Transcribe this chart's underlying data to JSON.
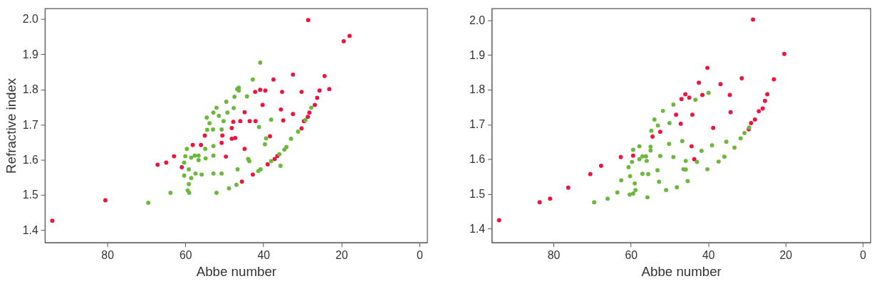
{
  "chart_data": [
    {
      "type": "scatter",
      "xlabel": "Abbe number",
      "ylabel": "Refractive index",
      "xlim": [
        96,
        -2
      ],
      "ylim": [
        1.365,
        2.03
      ],
      "xticks": [
        80,
        60,
        40,
        20,
        0
      ],
      "yticks": [
        1.4,
        1.5,
        1.6,
        1.7,
        1.8,
        1.9,
        {
          "value": 2.0,
          "label": "2.0"
        }
      ],
      "grid": false,
      "legend": false,
      "marker": "circle",
      "series": [
        {
          "color": "#f0143c",
          "x": [
            94.1,
            80.5,
            67.1,
            64.9,
            62.9,
            60.9,
            58.1,
            56.0,
            55.0,
            50.5,
            50.7,
            49.6,
            48.1,
            47.7,
            48.1,
            47.2,
            28.5,
            17.9,
            19.4,
            32.4,
            37.4,
            24.3,
            23.1,
            25.6,
            26.2,
            26.8,
            30.2,
            35.2,
            39.5,
            40.8,
            42.1,
            40.2,
            35.5,
            32.4,
            34.9,
            44.8,
            45.9,
            43.5,
            42.0,
            28.2,
            28.6,
            29.6,
            30.2,
            38.3,
            44.8,
            36.4,
            37.1,
            38.9,
            42.7,
            45.5
          ],
          "values": [
            1.427,
            1.485,
            1.586,
            1.592,
            1.61,
            1.579,
            1.642,
            1.642,
            1.669,
            1.669,
            1.648,
            1.609,
            1.69,
            1.708,
            1.66,
            1.662,
            1.997,
            1.952,
            1.937,
            1.842,
            1.828,
            1.838,
            1.801,
            1.797,
            1.776,
            1.756,
            1.793,
            1.793,
            1.797,
            1.799,
            1.793,
            1.756,
            1.743,
            1.73,
            1.712,
            1.735,
            1.71,
            1.71,
            1.71,
            1.734,
            1.722,
            1.71,
            1.689,
            1.667,
            1.631,
            1.611,
            1.602,
            1.587,
            1.558,
            1.538
          ]
        },
        {
          "color": "#6cb83a",
          "x": [
            69.5,
            63.8,
            59.0,
            59.4,
            59.1,
            58.5,
            60.3,
            59.1,
            60.3,
            60.0,
            59.6,
            58.5,
            57.6,
            56.6,
            56.6,
            54.9,
            54.8,
            57.4,
            55.8,
            52.8,
            50.7,
            52.8,
            52.8,
            52.0,
            48.8,
            46.9,
            46.6,
            54.4,
            52.9,
            50.7,
            54.5,
            53.8,
            52.0,
            51.4,
            50.2,
            49.2,
            49.5,
            47.4,
            47.6,
            46.7,
            52.8,
            40.8,
            42.7,
            46.3,
            46.3,
            44.2,
            38.0,
            41.1,
            39.3,
            39.6,
            27.7,
            29.2,
            31.1,
            32.9,
            34.1,
            34.6,
            35.9,
            38.0,
            35.6,
            40.7,
            41.3,
            43.9,
            43.6
          ],
          "values": [
            1.478,
            1.506,
            1.506,
            1.513,
            1.531,
            1.548,
            1.555,
            1.573,
            1.592,
            1.61,
            1.631,
            1.606,
            1.612,
            1.612,
            1.599,
            1.631,
            1.604,
            1.561,
            1.558,
            1.561,
            1.561,
            1.612,
            1.639,
            1.506,
            1.519,
            1.529,
            1.573,
            1.685,
            1.686,
            1.686,
            1.72,
            1.704,
            1.748,
            1.725,
            1.71,
            1.734,
            1.765,
            1.779,
            1.747,
            1.801,
            1.734,
            1.876,
            1.828,
            1.805,
            1.797,
            1.78,
            1.714,
            1.693,
            1.661,
            1.644,
            1.748,
            1.713,
            1.68,
            1.66,
            1.636,
            1.629,
            1.616,
            1.596,
            1.583,
            1.573,
            1.568,
            1.602,
            1.596
          ]
        }
      ]
    },
    {
      "type": "scatter",
      "xlabel": "Abbe number",
      "xlim": [
        96,
        -2
      ],
      "ylim": [
        1.36,
        2.034
      ],
      "xticks": [
        80,
        60,
        40,
        20,
        0
      ],
      "yticks": [
        1.4,
        1.5,
        1.6,
        1.7,
        1.8,
        1.9,
        {
          "value": 2.0,
          "label": "2.0"
        }
      ],
      "grid": false,
      "legend": false,
      "marker": "circle",
      "series": [
        {
          "color": "#f0143c",
          "x": [
            94.1,
            83.6,
            80.9,
            76.2,
            70.5,
            67.7,
            62.6,
            59.4,
            54.4,
            52.4,
            48.3,
            47.1,
            46.9,
            28.4,
            20.3,
            23.0,
            31.3,
            40.2,
            42.4,
            36.8,
            45.9,
            44.9,
            41.5,
            34.4,
            24.7,
            25.3,
            25.9,
            26.9,
            27.9,
            28.9,
            29.5,
            34.2,
            44.1,
            38.7,
            44.3,
            43.6
          ],
          "values": [
            1.424,
            1.476,
            1.486,
            1.518,
            1.557,
            1.581,
            1.606,
            1.61,
            1.665,
            1.679,
            1.728,
            1.702,
            1.773,
            2.002,
            1.903,
            1.83,
            1.833,
            1.863,
            1.82,
            1.816,
            1.787,
            1.777,
            1.785,
            1.785,
            1.787,
            1.768,
            1.746,
            1.738,
            1.714,
            1.704,
            1.686,
            1.735,
            1.728,
            1.69,
            1.637,
            1.6
          ]
        },
        {
          "color": "#6cb83a",
          "x": [
            69.5,
            66.0,
            63.5,
            62.5,
            60.6,
            59.7,
            60.2,
            59.0,
            58.8,
            60.3,
            59.4,
            55.7,
            59.4,
            57.8,
            57.8,
            57.0,
            56.1,
            55.9,
            57.0,
            55.5,
            54.9,
            54.9,
            52.4,
            53.1,
            52.7,
            50.9,
            48.1,
            49.0,
            50.1,
            54.7,
            53.0,
            53.9,
            51.7,
            50.0,
            49.0,
            46.7,
            46.4,
            43.3,
            39.9,
            45.8,
            45.8,
            45.3,
            42.9,
            41.7,
            39.0,
            40.2,
            37.3,
            35.8,
            35.3,
            33.2,
            31.6,
            30.6,
            29.4
          ],
          "values": [
            1.476,
            1.486,
            1.504,
            1.539,
            1.577,
            1.592,
            1.551,
            1.53,
            1.511,
            1.498,
            1.501,
            1.49,
            1.627,
            1.637,
            1.6,
            1.608,
            1.608,
            1.595,
            1.558,
            1.557,
            1.636,
            1.625,
            1.609,
            1.568,
            1.535,
            1.511,
            1.519,
            1.606,
            1.644,
            1.682,
            1.697,
            1.714,
            1.739,
            1.704,
            1.757,
            1.652,
            1.571,
            1.771,
            1.791,
            1.595,
            1.57,
            1.537,
            1.592,
            1.624,
            1.64,
            1.571,
            1.593,
            1.607,
            1.65,
            1.633,
            1.66,
            1.675,
            1.691
          ]
        }
      ]
    }
  ]
}
